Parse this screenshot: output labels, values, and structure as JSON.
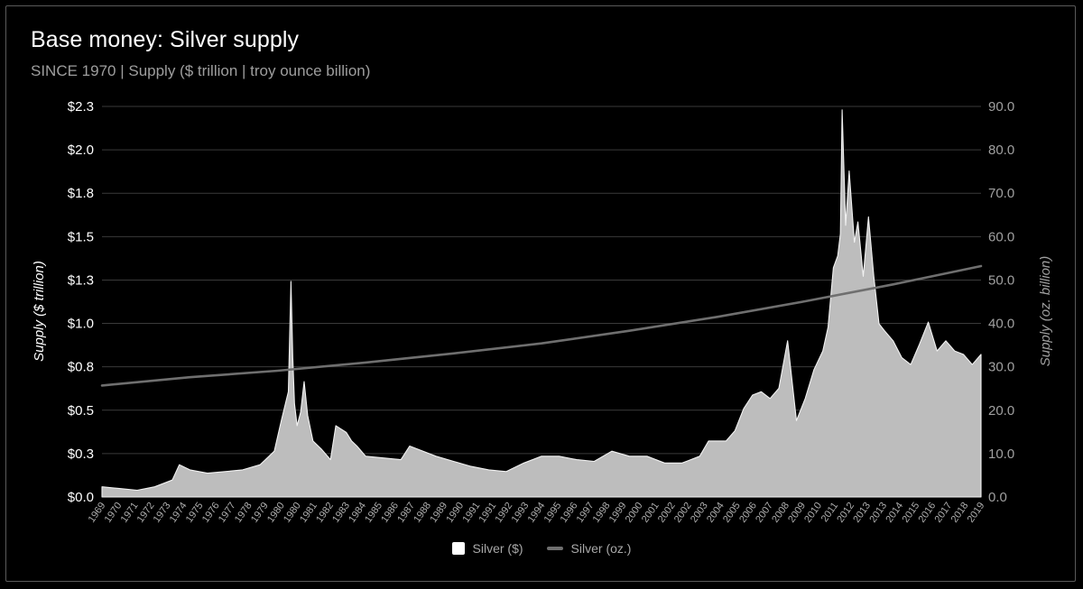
{
  "chart_data": {
    "type": "area",
    "title": "Base money: Silver supply",
    "subtitle": "SINCE 1970 | Supply ($ trillion | troy ounce billion)",
    "ylabel": "Supply ($ trillion)",
    "y2label": "Supply (oz. billion)",
    "ylim": [
      0,
      2.3
    ],
    "y2lim": [
      0,
      90
    ],
    "y_ticks": [
      "$0.0",
      "$0.3",
      "$0.5",
      "$0.8",
      "$1.0",
      "$1.3",
      "$1.5",
      "$1.8",
      "$2.0",
      "$2.3"
    ],
    "y2_ticks": [
      "0.0",
      "10.0",
      "20.0",
      "30.0",
      "40.0",
      "50.0",
      "60.0",
      "70.0",
      "80.0",
      "90.0"
    ],
    "x_ticks": [
      "1969",
      "1970",
      "1971",
      "1972",
      "1973",
      "1974",
      "1975",
      "1976",
      "1977",
      "1978",
      "1979",
      "1980",
      "1980",
      "1981",
      "1982",
      "1983",
      "1984",
      "1985",
      "1986",
      "1987",
      "1988",
      "1989",
      "1990",
      "1991",
      "1991",
      "1992",
      "1993",
      "1994",
      "1995",
      "1996",
      "1997",
      "1998",
      "1999",
      "2000",
      "2001",
      "2002",
      "2002",
      "2003",
      "2004",
      "2005",
      "2006",
      "2007",
      "2008",
      "2009",
      "2010",
      "2011",
      "2012",
      "2013",
      "2013",
      "2014",
      "2015",
      "2016",
      "2017",
      "2018",
      "2019"
    ],
    "grid": true,
    "legend_position": "bottom-center",
    "series": [
      {
        "name": "Silver ($)",
        "kind": "area",
        "axis": "left",
        "color": "#bdbdbd",
        "x": [
          1969.0,
          1970.0,
          1971.0,
          1972.0,
          1973.0,
          1973.4,
          1974.0,
          1975.0,
          1976.0,
          1977.0,
          1978.0,
          1978.8,
          1979.2,
          1979.6,
          1979.75,
          1979.85,
          1979.95,
          1980.1,
          1980.3,
          1980.5,
          1980.7,
          1981.0,
          1981.5,
          1982.0,
          1982.3,
          1982.6,
          1982.9,
          1983.2,
          1983.5,
          1984.0,
          1985.0,
          1986.0,
          1986.5,
          1987.0,
          1988.0,
          1989.0,
          1990.0,
          1991.0,
          1992.0,
          1993.0,
          1994.0,
          1995.0,
          1996.0,
          1997.0,
          1998.0,
          1999.0,
          2000.0,
          2001.0,
          2002.0,
          2003.0,
          2003.5,
          2004.0,
          2004.5,
          2005.0,
          2005.5,
          2006.0,
          2006.5,
          2007.0,
          2007.5,
          2008.0,
          2008.5,
          2009.0,
          2009.5,
          2010.0,
          2010.3,
          2010.6,
          2010.85,
          2011.0,
          2011.1,
          2011.3,
          2011.5,
          2011.8,
          2012.0,
          2012.3,
          2012.6,
          2012.9,
          2013.2,
          2013.5,
          2014.0,
          2014.5,
          2015.0,
          2015.5,
          2016.0,
          2016.5,
          2017.0,
          2017.5,
          2018.0,
          2018.5,
          2019.0
        ],
        "values": [
          0.06,
          0.05,
          0.04,
          0.06,
          0.1,
          0.19,
          0.16,
          0.14,
          0.15,
          0.16,
          0.19,
          0.27,
          0.45,
          0.62,
          1.27,
          0.82,
          0.55,
          0.42,
          0.5,
          0.68,
          0.48,
          0.33,
          0.28,
          0.22,
          0.42,
          0.4,
          0.38,
          0.33,
          0.3,
          0.24,
          0.23,
          0.22,
          0.3,
          0.28,
          0.24,
          0.21,
          0.18,
          0.16,
          0.15,
          0.2,
          0.24,
          0.24,
          0.22,
          0.21,
          0.27,
          0.24,
          0.24,
          0.2,
          0.2,
          0.24,
          0.33,
          0.33,
          0.33,
          0.39,
          0.52,
          0.6,
          0.62,
          0.58,
          0.64,
          0.92,
          0.45,
          0.58,
          0.75,
          0.86,
          1.0,
          1.35,
          1.42,
          1.55,
          2.28,
          1.6,
          1.92,
          1.5,
          1.62,
          1.3,
          1.65,
          1.3,
          1.02,
          0.98,
          0.92,
          0.82,
          0.78,
          0.9,
          1.03,
          0.86,
          0.92,
          0.86,
          0.84,
          0.78,
          0.84
        ]
      },
      {
        "name": "Silver (oz.)",
        "kind": "line",
        "axis": "right",
        "color": "#6f6f6f",
        "x": [
          1969,
          1974,
          1979,
          1984,
          1989,
          1994,
          1999,
          2004,
          2009,
          2014,
          2019
        ],
        "values": [
          25.7,
          27.6,
          29.1,
          31.0,
          33.1,
          35.4,
          38.3,
          41.5,
          45.1,
          49.0,
          53.2
        ]
      }
    ]
  }
}
